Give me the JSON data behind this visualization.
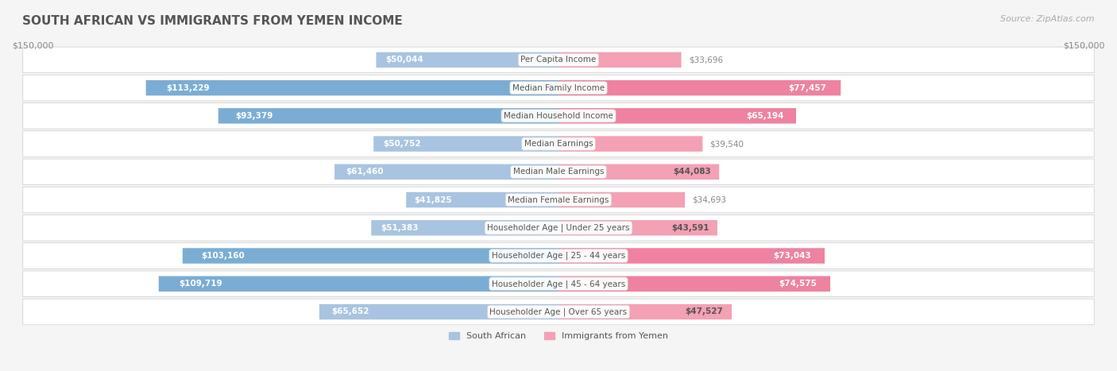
{
  "title": "SOUTH AFRICAN VS IMMIGRANTS FROM YEMEN INCOME",
  "source": "Source: ZipAtlas.com",
  "categories": [
    "Per Capita Income",
    "Median Family Income",
    "Median Household Income",
    "Median Earnings",
    "Median Male Earnings",
    "Median Female Earnings",
    "Householder Age | Under 25 years",
    "Householder Age | 25 - 44 years",
    "Householder Age | 45 - 64 years",
    "Householder Age | Over 65 years"
  ],
  "south_african": [
    50044,
    113229,
    93379,
    50752,
    61460,
    41825,
    51383,
    103160,
    109719,
    65652
  ],
  "immigrants_yemen": [
    33696,
    77457,
    65194,
    39540,
    44083,
    34693,
    43591,
    73043,
    74575,
    47527
  ],
  "max_val": 150000,
  "blue_color": "#a8c4e0",
  "blue_dark_color": "#7badd4",
  "pink_color": "#f4a0b5",
  "pink_dark_color": "#ee82a0",
  "label_blue": "South African",
  "label_pink": "Immigrants from Yemen",
  "bg_color": "#f5f5f5",
  "row_bg": "#ffffff",
  "title_color": "#555555",
  "value_color_outside": "#888888",
  "value_color_inside": "#ffffff",
  "axis_label_left": "$150,000",
  "axis_label_right": "$150,000"
}
